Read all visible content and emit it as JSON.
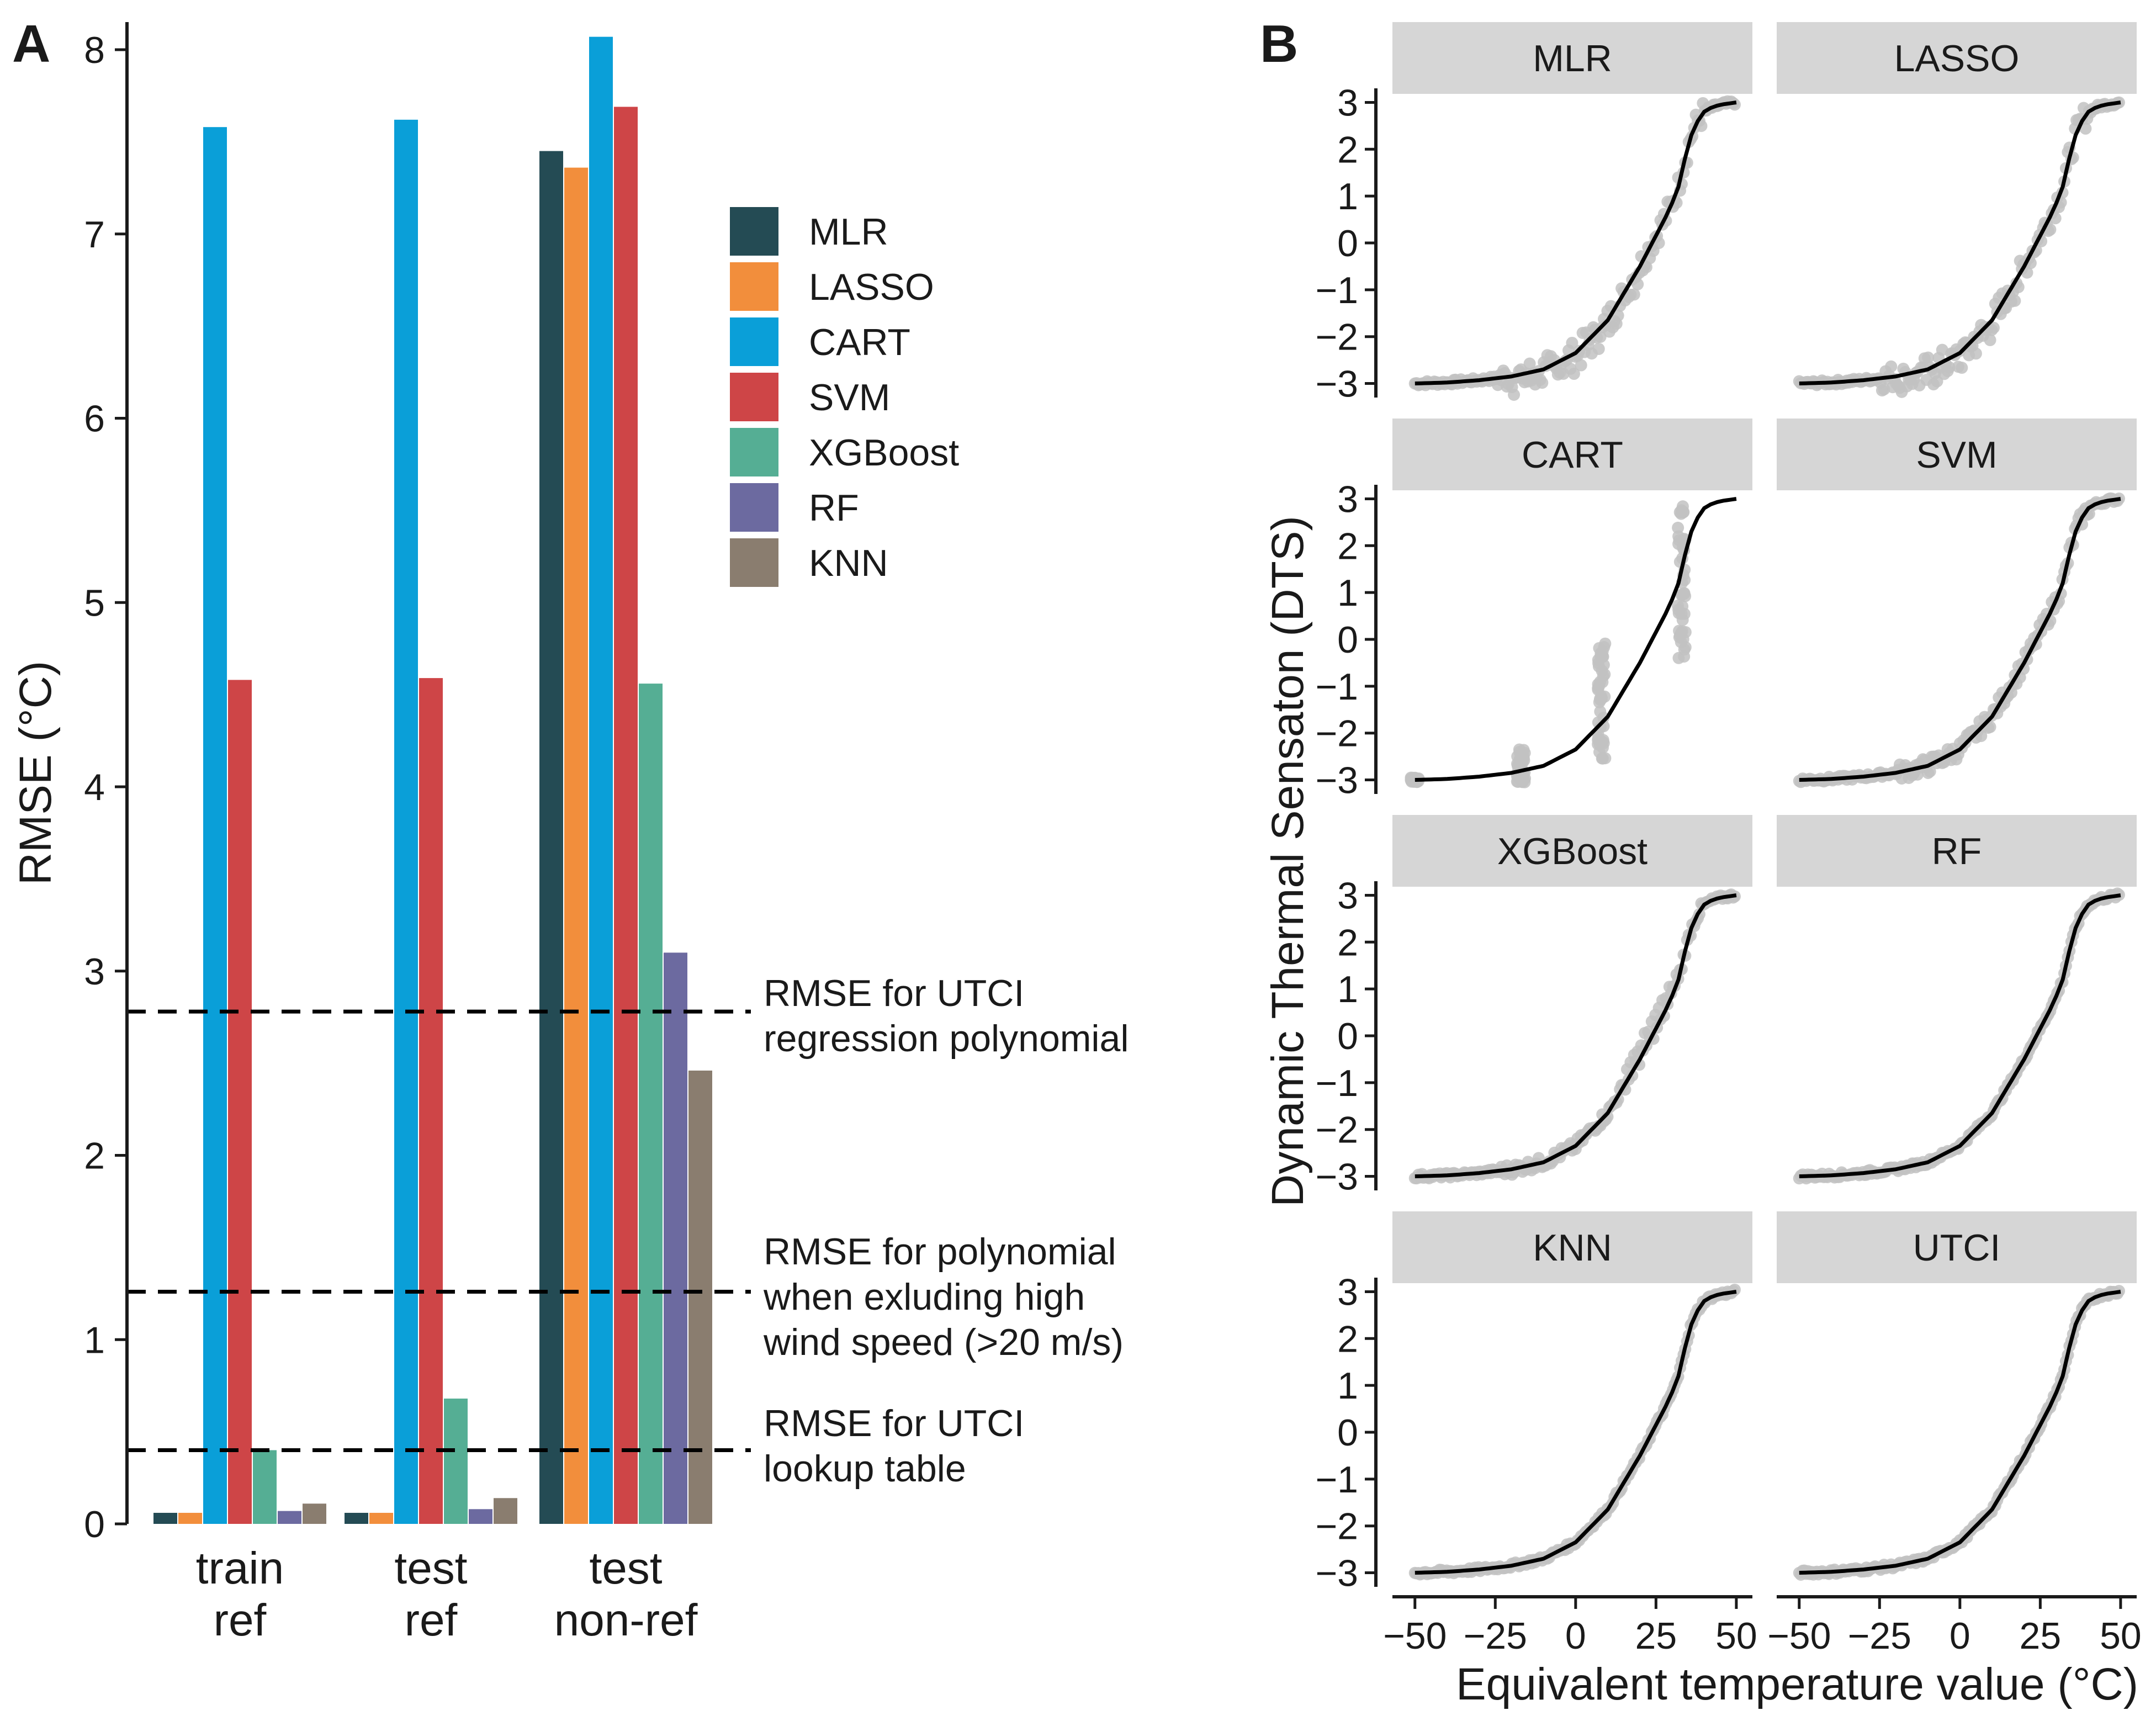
{
  "panel_labels": {
    "a": "A",
    "b": "B"
  },
  "chart_data": [
    {
      "type": "bar",
      "panel": "A",
      "ylabel": "RMSE (°C)",
      "ylim": [
        0,
        8.15
      ],
      "yticks": [
        "0",
        "1",
        "2",
        "3",
        "4",
        "5",
        "6",
        "7",
        "8"
      ],
      "categories": [
        {
          "line1": "train",
          "line2": "ref"
        },
        {
          "line1": "test",
          "line2": "ref"
        },
        {
          "line1": "test",
          "line2": "non-ref"
        }
      ],
      "series": [
        {
          "name": "MLR",
          "color": "#244B54",
          "values": [
            0.06,
            0.06,
            7.45
          ]
        },
        {
          "name": "LASSO",
          "color": "#F28E3C",
          "values": [
            0.06,
            0.06,
            7.36
          ]
        },
        {
          "name": "CART",
          "color": "#0A9FD8",
          "values": [
            7.58,
            7.62,
            8.07
          ]
        },
        {
          "name": "SVM",
          "color": "#CE4547",
          "values": [
            4.58,
            4.59,
            7.69
          ]
        },
        {
          "name": "XGBoost",
          "color": "#55AE94",
          "values": [
            0.4,
            0.68,
            4.56
          ]
        },
        {
          "name": "RF",
          "color": "#6C6AA0",
          "values": [
            0.07,
            0.08,
            3.1
          ]
        },
        {
          "name": "KNN",
          "color": "#8A7D6F",
          "values": [
            0.11,
            0.14,
            2.46
          ]
        }
      ],
      "reference_lines": [
        {
          "value": 2.78,
          "line1": "RMSE for UTCI",
          "line2": "regression polynomial",
          "line3": ""
        },
        {
          "value": 1.26,
          "line1": "RMSE for polynomial",
          "line2": "when exluding high",
          "line3": "wind speed (>20 m/s)"
        },
        {
          "value": 0.4,
          "line1": "RMSE for UTCI",
          "line2": "lookup table",
          "line3": ""
        }
      ]
    },
    {
      "type": "scatter",
      "panel": "B",
      "xlabel": "Equivalent temperature value (°C)",
      "ylabel": "Dynamic Thermal Sensaton (DTS)",
      "xlim": [
        -57,
        55
      ],
      "ylim": [
        -3.3,
        3.3
      ],
      "xticks": [
        "−50",
        "−25",
        "0",
        "25",
        "50"
      ],
      "yticks": [
        "3",
        "2",
        "1",
        "0",
        "−1",
        "−2",
        "−3"
      ],
      "reference_curve": {
        "name": "DTS reference (black line)",
        "x": [
          -50,
          -40,
          -30,
          -20,
          -10,
          0,
          10,
          20,
          28,
          30,
          32,
          34,
          36,
          38,
          40,
          42,
          44,
          46,
          50
        ],
        "y": [
          -3.0,
          -2.98,
          -2.93,
          -2.85,
          -2.7,
          -2.35,
          -1.65,
          -0.5,
          0.55,
          0.85,
          1.2,
          1.8,
          2.3,
          2.6,
          2.8,
          2.88,
          2.93,
          2.96,
          3.0
        ]
      },
      "facets": [
        {
          "name": "MLR",
          "scatter": "band"
        },
        {
          "name": "LASSO",
          "scatter": "band"
        },
        {
          "name": "CART",
          "scatter": "steps"
        },
        {
          "name": "SVM",
          "scatter": "thick"
        },
        {
          "name": "XGBoost",
          "scatter": "bumps"
        },
        {
          "name": "RF",
          "scatter": "thin"
        },
        {
          "name": "KNN",
          "scatter": "thin"
        },
        {
          "name": "UTCI",
          "scatter": "thin"
        }
      ]
    }
  ]
}
